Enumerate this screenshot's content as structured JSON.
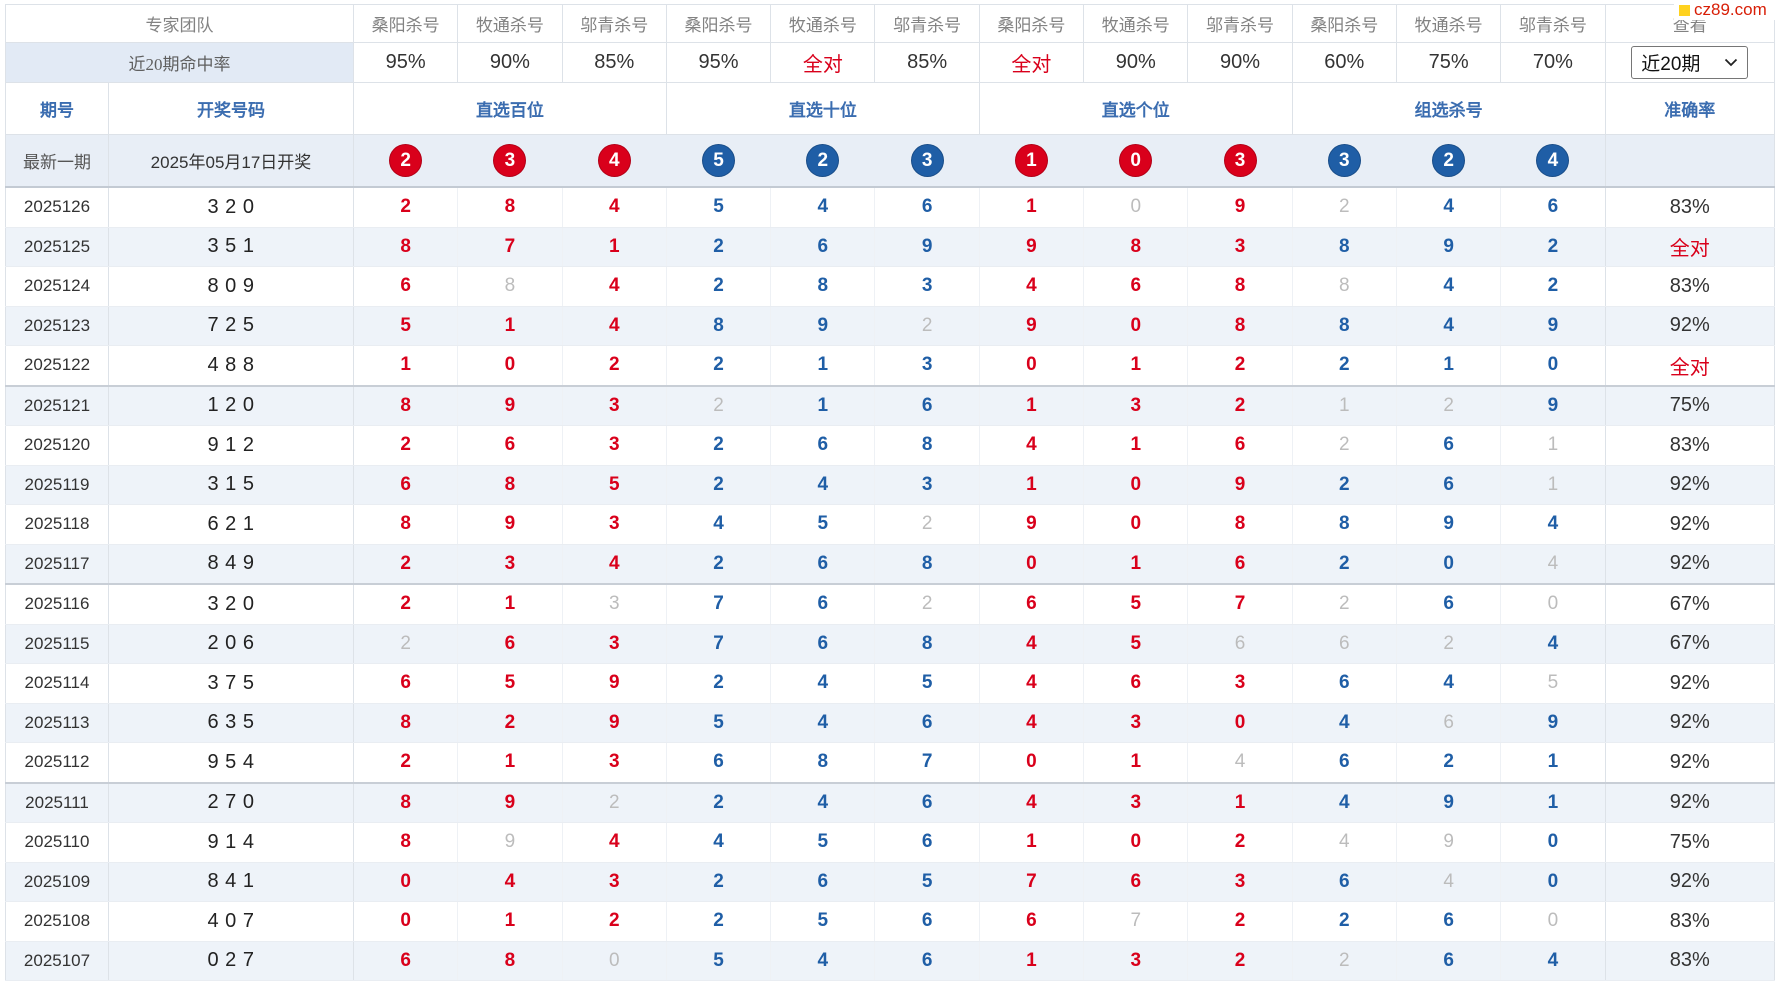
{
  "watermark": "cz89.com",
  "colors": {
    "red": "#d9001b",
    "blue": "#1f5ea6",
    "grey": "#bcbcbc",
    "header_blue": "#3b6db0"
  },
  "header": {
    "team_label": "专家团队",
    "experts": [
      "桑阳杀号",
      "牧通杀号",
      "邬青杀号",
      "桑阳杀号",
      "牧通杀号",
      "邬青杀号",
      "桑阳杀号",
      "牧通杀号",
      "邬青杀号",
      "桑阳杀号",
      "牧通杀号",
      "邬青杀号"
    ],
    "view_label": "查看",
    "hit_rate_label": "近20期命中率",
    "hit_rates": [
      "95%",
      "90%",
      "85%",
      "95%",
      "全对",
      "85%",
      "全对",
      "90%",
      "90%",
      "60%",
      "75%",
      "70%"
    ],
    "period_select": {
      "value": "近20期"
    },
    "col_period": "期号",
    "col_draw": "开奖号码",
    "groups": [
      "直选百位",
      "直选十位",
      "直选个位",
      "组选杀号"
    ],
    "col_accuracy": "准确率"
  },
  "latest": {
    "label": "最新一期",
    "date": "2025年05月17日开奖",
    "predictions": [
      2,
      3,
      4,
      5,
      2,
      3,
      1,
      0,
      3,
      3,
      2,
      4
    ]
  },
  "rows": [
    {
      "period": "2025126",
      "draw": "3 2 0",
      "kills": [
        2,
        8,
        4,
        5,
        4,
        6,
        1,
        0,
        9,
        2,
        4,
        6
      ],
      "missed": [
        7,
        9
      ],
      "accuracy": "83%"
    },
    {
      "period": "2025125",
      "draw": "3 5 1",
      "kills": [
        8,
        7,
        1,
        2,
        6,
        9,
        9,
        8,
        3,
        8,
        9,
        2
      ],
      "missed": [],
      "accuracy": "全对"
    },
    {
      "period": "2025124",
      "draw": "8 0 9",
      "kills": [
        6,
        8,
        4,
        2,
        8,
        3,
        4,
        6,
        8,
        8,
        4,
        2
      ],
      "missed": [
        1,
        9
      ],
      "accuracy": "83%"
    },
    {
      "period": "2025123",
      "draw": "7 2 5",
      "kills": [
        5,
        1,
        4,
        8,
        9,
        2,
        9,
        0,
        8,
        8,
        4,
        9
      ],
      "missed": [
        5
      ],
      "accuracy": "92%"
    },
    {
      "period": "2025122",
      "draw": "4 8 8",
      "kills": [
        1,
        0,
        2,
        2,
        1,
        3,
        0,
        1,
        2,
        2,
        1,
        0
      ],
      "missed": [],
      "accuracy": "全对"
    },
    {
      "period": "2025121",
      "draw": "1 2 0",
      "kills": [
        8,
        9,
        3,
        2,
        1,
        6,
        1,
        3,
        2,
        1,
        2,
        9
      ],
      "missed": [
        3,
        9,
        10
      ],
      "accuracy": "75%"
    },
    {
      "period": "2025120",
      "draw": "9 1 2",
      "kills": [
        2,
        6,
        3,
        2,
        6,
        8,
        4,
        1,
        6,
        2,
        6,
        1
      ],
      "missed": [
        9,
        11
      ],
      "accuracy": "83%"
    },
    {
      "period": "2025119",
      "draw": "3 1 5",
      "kills": [
        6,
        8,
        5,
        2,
        4,
        3,
        1,
        0,
        9,
        2,
        6,
        1
      ],
      "missed": [
        11
      ],
      "accuracy": "92%"
    },
    {
      "period": "2025118",
      "draw": "6 2 1",
      "kills": [
        8,
        9,
        3,
        4,
        5,
        2,
        9,
        0,
        8,
        8,
        9,
        4
      ],
      "missed": [
        5
      ],
      "accuracy": "92%"
    },
    {
      "period": "2025117",
      "draw": "8 4 9",
      "kills": [
        2,
        3,
        4,
        2,
        6,
        8,
        0,
        1,
        6,
        2,
        0,
        4
      ],
      "missed": [
        11
      ],
      "accuracy": "92%"
    },
    {
      "period": "2025116",
      "draw": "3 2 0",
      "kills": [
        2,
        1,
        3,
        7,
        6,
        2,
        6,
        5,
        7,
        2,
        6,
        0
      ],
      "missed": [
        2,
        5,
        9,
        11
      ],
      "accuracy": "67%"
    },
    {
      "period": "2025115",
      "draw": "2 0 6",
      "kills": [
        2,
        6,
        3,
        7,
        6,
        8,
        4,
        5,
        6,
        6,
        2,
        4
      ],
      "missed": [
        0,
        8,
        9,
        10
      ],
      "accuracy": "67%"
    },
    {
      "period": "2025114",
      "draw": "3 7 5",
      "kills": [
        6,
        5,
        9,
        2,
        4,
        5,
        4,
        6,
        3,
        6,
        4,
        5
      ],
      "missed": [
        11
      ],
      "accuracy": "92%"
    },
    {
      "period": "2025113",
      "draw": "6 3 5",
      "kills": [
        8,
        2,
        9,
        5,
        4,
        6,
        4,
        3,
        0,
        4,
        6,
        9
      ],
      "missed": [
        10
      ],
      "accuracy": "92%"
    },
    {
      "period": "2025112",
      "draw": "9 5 4",
      "kills": [
        2,
        1,
        3,
        6,
        8,
        7,
        0,
        1,
        4,
        6,
        2,
        1
      ],
      "missed": [
        8
      ],
      "accuracy": "92%"
    },
    {
      "period": "2025111",
      "draw": "2 7 0",
      "kills": [
        8,
        9,
        2,
        2,
        4,
        6,
        4,
        3,
        1,
        4,
        9,
        1
      ],
      "missed": [
        2
      ],
      "accuracy": "92%"
    },
    {
      "period": "2025110",
      "draw": "9 1 4",
      "kills": [
        8,
        9,
        4,
        4,
        5,
        6,
        1,
        0,
        2,
        4,
        9,
        0
      ],
      "missed": [
        1,
        9,
        10
      ],
      "accuracy": "75%"
    },
    {
      "period": "2025109",
      "draw": "8 4 1",
      "kills": [
        0,
        4,
        3,
        2,
        6,
        5,
        7,
        6,
        3,
        6,
        4,
        0
      ],
      "missed": [
        10
      ],
      "accuracy": "92%"
    },
    {
      "period": "2025108",
      "draw": "4 0 7",
      "kills": [
        0,
        1,
        2,
        2,
        5,
        6,
        6,
        7,
        2,
        2,
        6,
        0
      ],
      "missed": [
        7,
        11
      ],
      "accuracy": "83%"
    },
    {
      "period": "2025107",
      "draw": "0 2 7",
      "kills": [
        6,
        8,
        0,
        5,
        4,
        6,
        1,
        3,
        2,
        2,
        6,
        4
      ],
      "missed": [
        2,
        9
      ],
      "accuracy": "83%"
    }
  ]
}
